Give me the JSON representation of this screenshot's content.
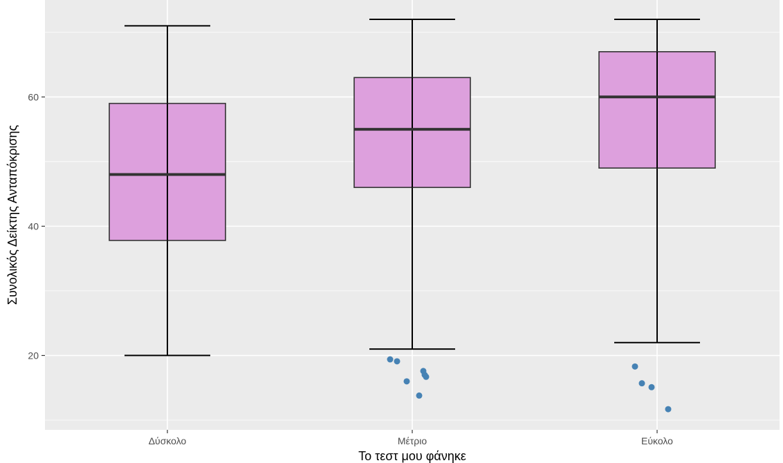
{
  "chart_data": {
    "type": "boxplot",
    "title": "",
    "xlabel": "Το τεστ μου φάνηκε",
    "ylabel": "Συνολικός Δείκτης Ανταπόκρισης",
    "ylim": [
      8.5,
      75
    ],
    "y_ticks": [
      20,
      40,
      60
    ],
    "grid": true,
    "colors": {
      "panel": "#ebebeb",
      "grid": "#ffffff",
      "box_fill": "#dda0dd",
      "box_stroke": "#333333",
      "outlier": "#4682b4"
    },
    "categories": [
      "Δύσκολο",
      "Μέτριο",
      "Εύκολο"
    ],
    "boxes": [
      {
        "label": "Δύσκολο",
        "whisker_low": 20,
        "q1": 37.8,
        "median": 48,
        "q3": 59,
        "whisker_high": 71,
        "outliers": []
      },
      {
        "label": "Μέτριο",
        "whisker_low": 21,
        "q1": 46,
        "median": 55,
        "q3": 63,
        "whisker_high": 72,
        "outliers": [
          19.4,
          19.1,
          16.0,
          17.6,
          17.0,
          16.7,
          13.8
        ]
      },
      {
        "label": "Εύκολο",
        "whisker_low": 22,
        "q1": 49,
        "median": 60,
        "q3": 67,
        "whisker_high": 72,
        "outliers": [
          18.3,
          15.7,
          15.1,
          11.7
        ]
      }
    ]
  }
}
